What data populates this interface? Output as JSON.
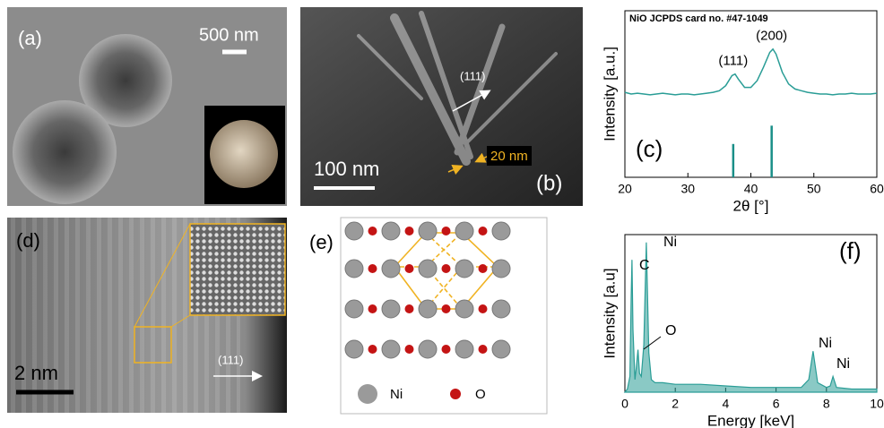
{
  "panels": {
    "a": {
      "label": "(a)",
      "scale": "500 nm"
    },
    "b": {
      "label": "(b)",
      "direction": "(111)",
      "width": "20 nm",
      "scale": "100 nm"
    },
    "d": {
      "label": "(d)",
      "scale": "2 nm",
      "direction": "(111)"
    },
    "e": {
      "label": "(e)",
      "legend": [
        "Ni",
        "O"
      ]
    }
  },
  "chart_data": [
    {
      "type": "line",
      "title": "NiO JCPDS card no. #47-1049",
      "panel_label": "(c)",
      "xlabel": "2θ [°]",
      "ylabel": "Intensity [a.u.]",
      "x": [
        20,
        21,
        22,
        23,
        24,
        25,
        26,
        27,
        28,
        29,
        30,
        31,
        32,
        33,
        34,
        35,
        36,
        37,
        37.5,
        38,
        39,
        40,
        41,
        42,
        43,
        43.5,
        44,
        45,
        46,
        47,
        48,
        49,
        50,
        51,
        52,
        53,
        54,
        55,
        56,
        57,
        58,
        59,
        60
      ],
      "values": [
        51,
        50,
        50.5,
        50,
        49.5,
        50,
        50.5,
        50,
        49.5,
        50,
        50,
        49.5,
        50,
        50.5,
        51,
        52,
        55,
        61,
        62,
        59,
        54,
        54,
        58,
        66,
        75,
        77,
        74,
        63,
        56,
        53,
        52,
        51,
        50.5,
        50,
        50,
        49.5,
        50,
        50,
        50.5,
        50,
        50,
        50,
        50.5
      ],
      "color": "#2a9d96",
      "reference": {
        "x": [
          37.2,
          43.3
        ],
        "values": [
          20,
          31
        ],
        "color": "#1a8f88"
      },
      "annotations": [
        "(111)",
        "(200)"
      ],
      "xlim": [
        20,
        60
      ],
      "ylim": [
        0,
        100
      ],
      "xticks": [
        20,
        30,
        40,
        50,
        60
      ]
    },
    {
      "type": "area",
      "panel_label": "(f)",
      "xlabel": "Energy [keV]",
      "ylabel": "Intensity [a.u]",
      "x": [
        0,
        0.1,
        0.2,
        0.25,
        0.28,
        0.32,
        0.4,
        0.45,
        0.52,
        0.58,
        0.65,
        0.75,
        0.85,
        0.95,
        1.05,
        1.2,
        1.5,
        2,
        3,
        4,
        5,
        6,
        7,
        7.3,
        7.47,
        7.65,
        8,
        8.15,
        8.26,
        8.4,
        9,
        10
      ],
      "values": [
        0,
        2,
        10,
        60,
        84,
        40,
        8,
        15,
        27,
        12,
        10,
        30,
        95,
        25,
        8,
        6,
        6,
        5,
        5,
        4,
        3,
        3,
        3,
        8,
        26,
        6,
        3,
        4,
        10,
        3,
        2,
        2
      ],
      "color": "#2a9d96",
      "annotations": [
        "C",
        "Ni",
        "O",
        "Ni",
        "Ni"
      ],
      "xlim": [
        0,
        10
      ],
      "ylim": [
        0,
        100
      ],
      "xticks": [
        0,
        2,
        4,
        6,
        8,
        10
      ]
    }
  ]
}
